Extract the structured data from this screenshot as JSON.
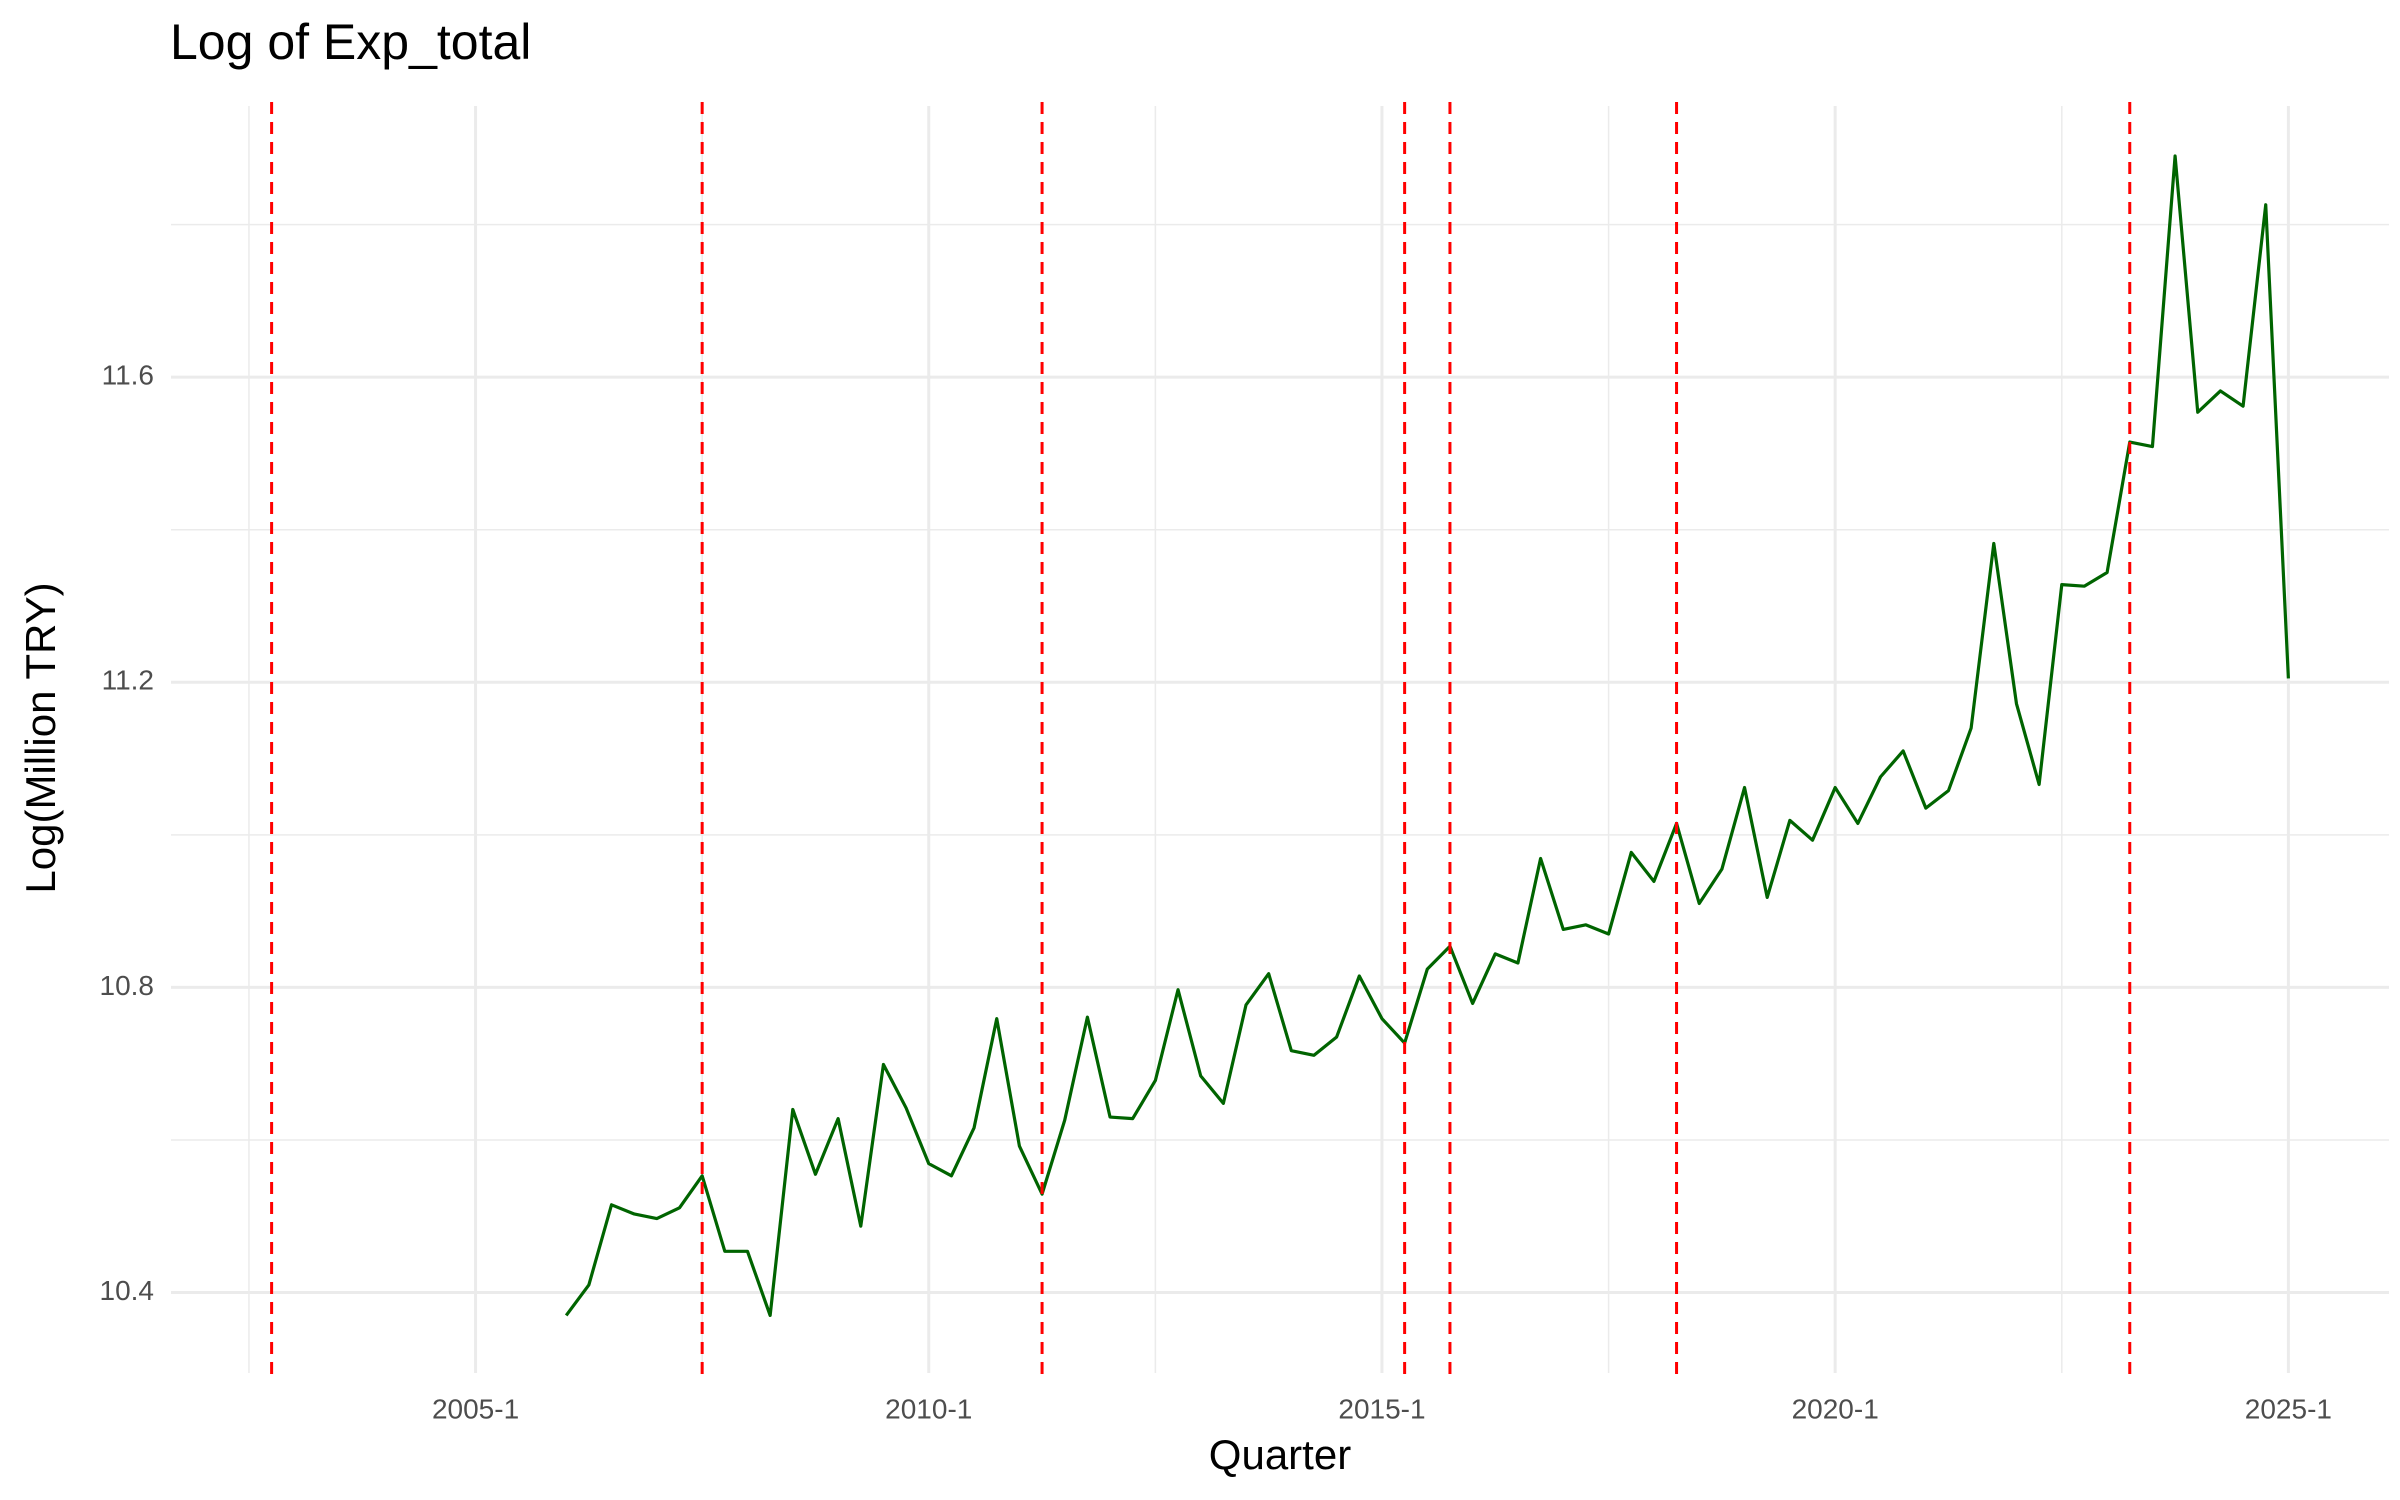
{
  "chart_data": {
    "type": "line",
    "title": "Log of Exp_total",
    "x_label": "Quarter",
    "y_label": "Log(Million TRY)",
    "x": [
      2006,
      2006.25,
      2006.5,
      2006.75,
      2007,
      2007.25,
      2007.5,
      2007.75,
      2008,
      2008.25,
      2008.5,
      2008.75,
      2009,
      2009.25,
      2009.5,
      2009.75,
      2010,
      2010.25,
      2010.5,
      2010.75,
      2011,
      2011.25,
      2011.5,
      2011.75,
      2012,
      2012.25,
      2012.5,
      2012.75,
      2013,
      2013.25,
      2013.5,
      2013.75,
      2014,
      2014.25,
      2014.5,
      2014.75,
      2015,
      2015.25,
      2015.5,
      2015.75,
      2016,
      2016.25,
      2016.5,
      2016.75,
      2017,
      2017.25,
      2017.5,
      2017.75,
      2018,
      2018.25,
      2018.5,
      2018.75,
      2019,
      2019.25,
      2019.5,
      2019.75,
      2020,
      2020.25,
      2020.5,
      2020.75,
      2021,
      2021.25,
      2021.5,
      2021.75,
      2022,
      2022.25,
      2022.5,
      2022.75,
      2023,
      2023.25,
      2023.5,
      2023.75,
      2024,
      2024.25,
      2024.5,
      2024.75,
      2025
    ],
    "values": [
      10.37,
      10.41,
      10.515,
      10.503,
      10.497,
      10.511,
      10.553,
      10.454,
      10.454,
      10.37,
      10.64,
      10.555,
      10.628,
      10.487,
      10.699,
      10.642,
      10.569,
      10.553,
      10.616,
      10.759,
      10.592,
      10.529,
      10.626,
      10.761,
      10.63,
      10.628,
      10.678,
      10.797,
      10.684,
      10.648,
      10.777,
      10.818,
      10.717,
      10.711,
      10.735,
      10.815,
      10.759,
      10.727,
      10.824,
      10.854,
      10.779,
      10.844,
      10.832,
      10.969,
      10.876,
      10.882,
      10.87,
      10.977,
      10.939,
      11.015,
      10.91,
      10.955,
      11.062,
      10.918,
      11.019,
      10.993,
      11.062,
      11.015,
      11.076,
      11.11,
      11.035,
      11.058,
      11.14,
      11.382,
      11.172,
      11.066,
      11.328,
      11.326,
      11.344,
      11.515,
      11.509,
      11.89,
      11.554,
      11.582,
      11.562,
      11.826,
      11.205
    ],
    "color": "#006400",
    "vlines": [
      2002.75,
      2007.5,
      2011.25,
      2015.25,
      2015.75,
      2018.25,
      2023.25
    ],
    "vline_color": "#ff0000",
    "xlim": [
      2001.64,
      2026.11
    ],
    "xticks": [
      {
        "value": 2005,
        "label": "2005-1"
      },
      {
        "value": 2010,
        "label": "2010-1"
      },
      {
        "value": 2015,
        "label": "2015-1"
      },
      {
        "value": 2020,
        "label": "2020-1"
      },
      {
        "value": 2025,
        "label": "2025-1"
      }
    ],
    "xticks_minor": [
      2002.5,
      2007.5,
      2012.5,
      2017.5,
      2022.5
    ],
    "ylim": [
      10.2945,
      11.9555
    ],
    "yticks": [
      10.4,
      10.8,
      11.2,
      11.6
    ],
    "yticks_minor": [
      10.6,
      11.0,
      11.4,
      11.8
    ],
    "grid": true
  }
}
